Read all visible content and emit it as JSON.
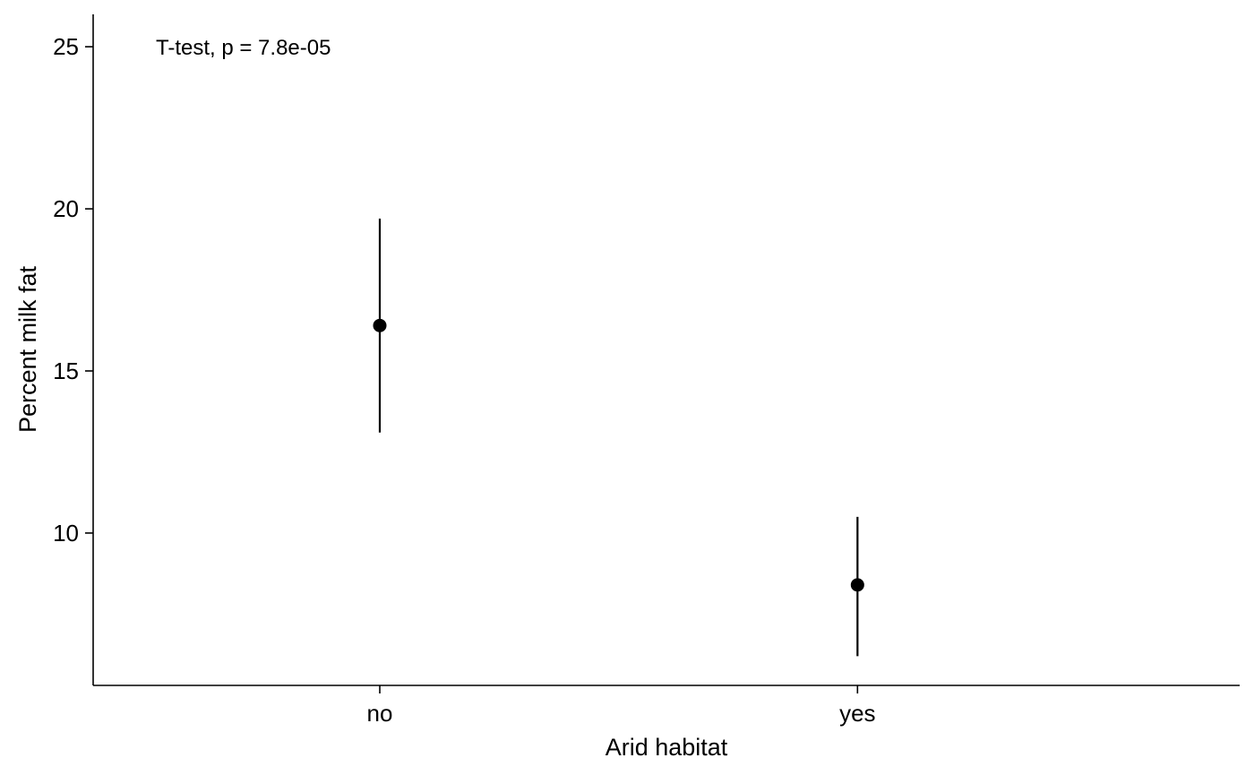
{
  "chart_data": {
    "type": "scatter",
    "title": "",
    "xlabel": "Arid habitat",
    "ylabel": "Percent milk fat",
    "categories": [
      "no",
      "yes"
    ],
    "series": [
      {
        "points": [
          {
            "x": "no",
            "y": 16.4,
            "lower": 13.1,
            "upper": 19.7
          },
          {
            "x": "yes",
            "y": 8.4,
            "lower": 6.2,
            "upper": 10.5
          }
        ]
      }
    ],
    "ylim": [
      5.3,
      26
    ],
    "yticks": [
      10,
      15,
      20,
      25
    ],
    "annotation": "T-test, p = 7.8e-05",
    "grid": false,
    "legend": "none",
    "colors": {
      "point": "#000000",
      "axis": "#000000"
    }
  }
}
